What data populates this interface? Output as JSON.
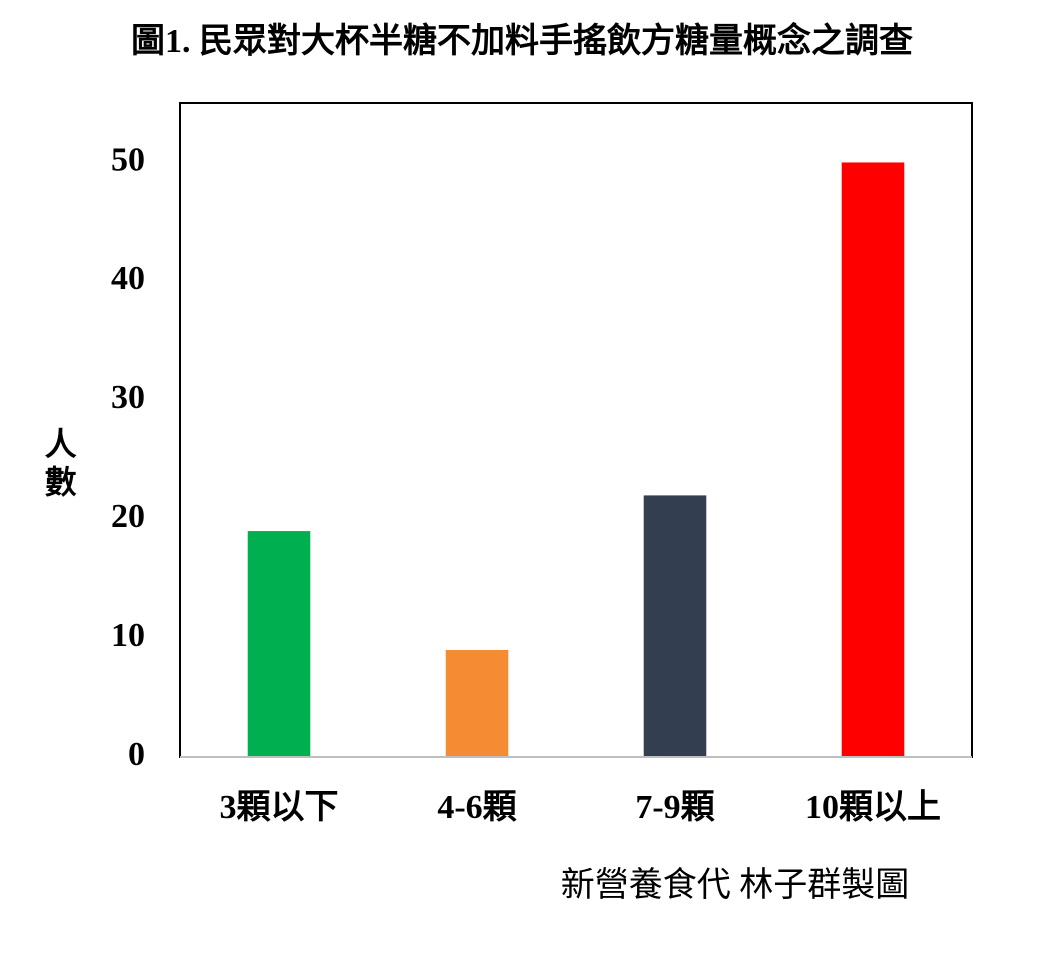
{
  "chart_data": {
    "type": "bar",
    "title": "圖1. 民眾對大杯半糖不加料手搖飲方糖量概念之調查",
    "y_label": "人數",
    "categories": [
      "3顆以下",
      "4-6顆",
      "7-9顆",
      "10顆以上"
    ],
    "values": [
      19,
      9,
      22,
      50
    ],
    "colors": [
      "#00b050",
      "#f58b33",
      "#333f50",
      "#ff0000"
    ],
    "ylim": [
      0,
      55
    ],
    "yticks": [
      0,
      10,
      20,
      30,
      40,
      50
    ],
    "grid": false,
    "credit": "新營養食代 林子群製圖"
  }
}
